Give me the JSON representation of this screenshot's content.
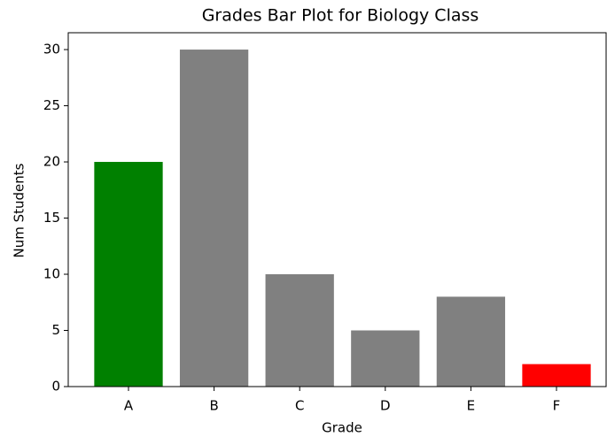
{
  "chart_data": {
    "type": "bar",
    "title": "Grades Bar Plot for Biology Class",
    "x_label": "Grade",
    "y_label": "Num Students",
    "categories": [
      "A",
      "B",
      "C",
      "D",
      "E",
      "F"
    ],
    "values": [
      20,
      30,
      10,
      5,
      8,
      2
    ],
    "colors": [
      "#008000",
      "#808080",
      "#808080",
      "#808080",
      "#808080",
      "#ff0000"
    ],
    "ylim": [
      0,
      31.5
    ],
    "yticks": [
      0,
      5,
      10,
      15,
      20,
      25,
      30
    ],
    "grid": false
  }
}
